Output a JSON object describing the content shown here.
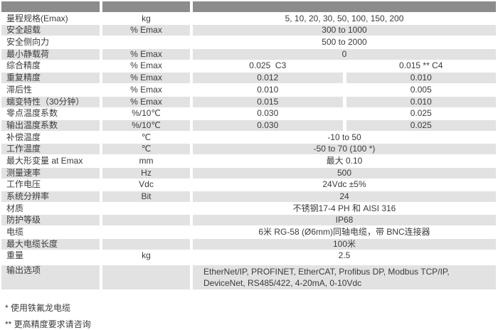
{
  "colors": {
    "header_bg": "#8c8c8c",
    "row_alt_bg": "#e2e2e2",
    "row_bg": "#ffffff",
    "text": "#3b3b3b"
  },
  "table": {
    "rows": [
      {
        "label": "量程规格(Emax)",
        "unit": "kg",
        "value": "5, 10, 20, 30, 50, 100, 150, 200"
      },
      {
        "label": "安全超载",
        "unit": "% Emax",
        "value": "300 to 1000"
      },
      {
        "label": "安全侧向力",
        "unit": "",
        "value": "500 to 2000"
      },
      {
        "label": "最小静载荷",
        "unit": "% Emax",
        "value": "0"
      },
      {
        "label": "综合精度",
        "unit": "% Emax",
        "value_c3": "0.025  C3",
        "value_c4": "0.015 ** C4"
      },
      {
        "label": "重复精度",
        "unit": "% Emax",
        "value_c3": "0.012",
        "value_c4": "0.010"
      },
      {
        "label": "滞后性",
        "unit": "% Emax",
        "value_c3": "0.010",
        "value_c4": "0.005"
      },
      {
        "label": "蠕变特性（30分钟）",
        "unit": "% Emax",
        "value_c3": "0.015",
        "value_c4": "0.010"
      },
      {
        "label": "零点温度系数",
        "unit": "%/10℃",
        "value_c3": "0.030",
        "value_c4": "0.025"
      },
      {
        "label": "输出温度系数",
        "unit": "%/10℃",
        "value_c3": "0.030",
        "value_c4": "0.025"
      },
      {
        "label": "补偿温度",
        "unit": "℃",
        "value": "-10 to 50"
      },
      {
        "label": "工作温度",
        "unit": "℃",
        "value": "-50 to 70 (100 *)"
      },
      {
        "label": "最大形变量 at Emax",
        "unit": "mm",
        "value": "最大 0.10"
      },
      {
        "label": "测量速率",
        "unit": "Hz",
        "value": "500"
      },
      {
        "label": "工作电压",
        "unit": "Vdc",
        "value": "24Vdc ±5%"
      },
      {
        "label": "系统分辨率",
        "unit": "Bit",
        "value": "24"
      },
      {
        "label": "材质",
        "unit": "",
        "value": "不锈钢17-4 PH 和 AISI 316"
      },
      {
        "label": "防护等级",
        "unit": "",
        "value": "IP68"
      },
      {
        "label": "电缆",
        "unit": "",
        "value": "6米 RG-58 (Ø6mm)同轴电缆，带 BNC连接器"
      },
      {
        "label": "最大电缆长度",
        "unit": "",
        "value": "100米"
      },
      {
        "label": "重量",
        "unit": "kg",
        "value": "2.5"
      },
      {
        "label": "输出选项",
        "unit": "",
        "value": "EtherNet/IP, PROFINET, EtherCAT, Profibus DP, Modbus TCP/IP,\nDeviceNet, RS485/422, 4-20mA, 0-10Vdc"
      }
    ],
    "footnotes": [
      "* 使用铁氟龙电缆",
      "** 更高精度要求请咨询"
    ]
  }
}
